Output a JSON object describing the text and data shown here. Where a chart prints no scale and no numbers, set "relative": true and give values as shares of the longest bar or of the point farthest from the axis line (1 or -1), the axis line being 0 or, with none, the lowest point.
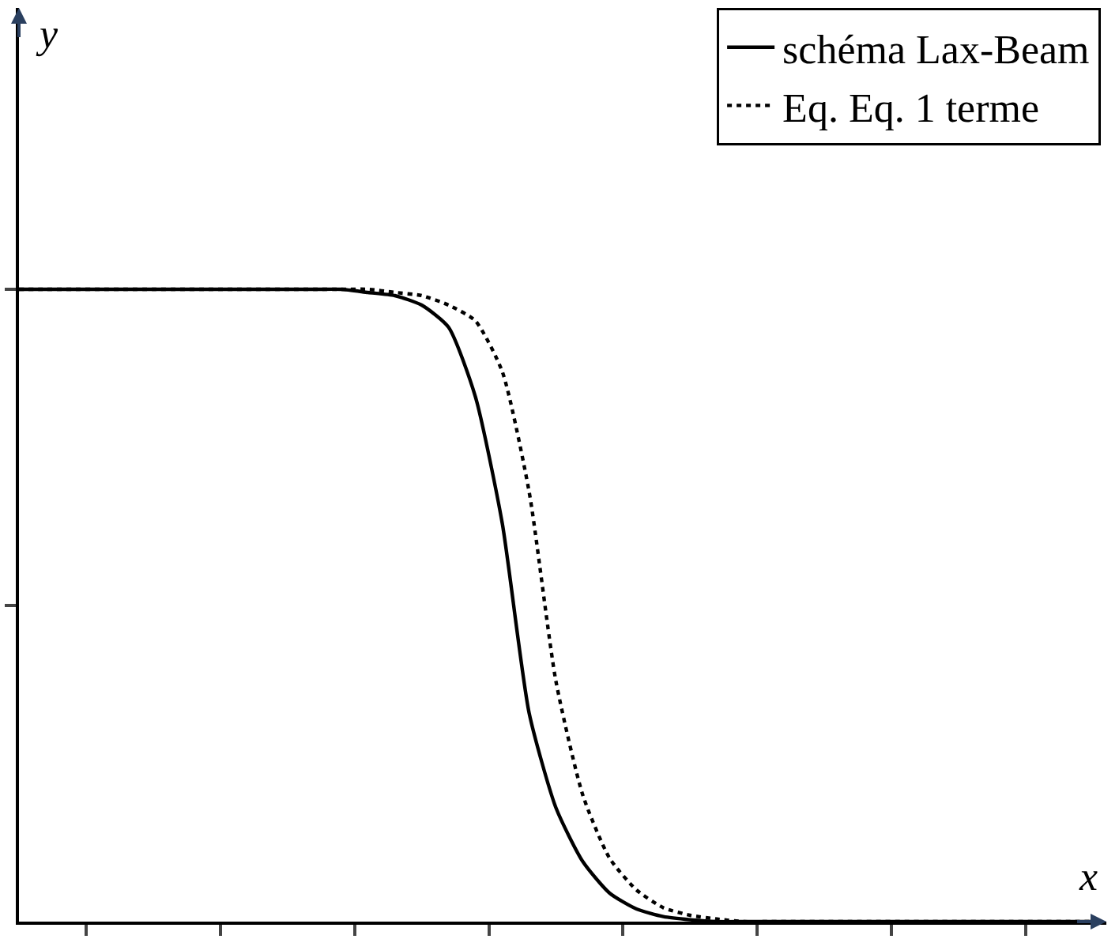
{
  "chart_data": {
    "type": "line",
    "relative": true,
    "xlabel": "x",
    "annotations": [
      "y"
    ],
    "legend": "top right",
    "categories": [
      null,
      null,
      null,
      null,
      null,
      null,
      null,
      null,
      null,
      null,
      null,
      null,
      null,
      null,
      null,
      null,
      null,
      null,
      null,
      null,
      null,
      null,
      null,
      null,
      null,
      null,
      null,
      null,
      null,
      null,
      null,
      null,
      null,
      null,
      null,
      null,
      null,
      null,
      null,
      null,
      null
    ],
    "series": [
      {
        "name": "schéma Lax-Beam",
        "color": "#000000",
        "line_style": "solid",
        "values": [
          1,
          1,
          1,
          1,
          1,
          1,
          1,
          1,
          1,
          1,
          1,
          1,
          1,
          0.995,
          0.99,
          0.975,
          0.94,
          0.83,
          0.63,
          0.33,
          0.18,
          0.095,
          0.045,
          0.02,
          0.008,
          0.003,
          0,
          0,
          0,
          0,
          0,
          0,
          0,
          0,
          0,
          0,
          0,
          0,
          0,
          0,
          0
        ]
      },
      {
        "name": "Eq. Eq. 1 terme",
        "color": "#000000",
        "line_style": "dotted",
        "values": [
          1,
          1,
          1,
          1,
          1,
          1,
          1,
          1,
          1,
          1,
          1,
          1,
          1,
          1,
          0.995,
          0.99,
          0.975,
          0.95,
          0.87,
          0.68,
          0.38,
          0.2,
          0.1,
          0.05,
          0.022,
          0.01,
          0.004,
          0,
          0,
          0,
          0,
          0,
          0,
          0,
          0,
          0,
          0,
          0,
          0,
          0,
          0
        ]
      }
    ]
  }
}
